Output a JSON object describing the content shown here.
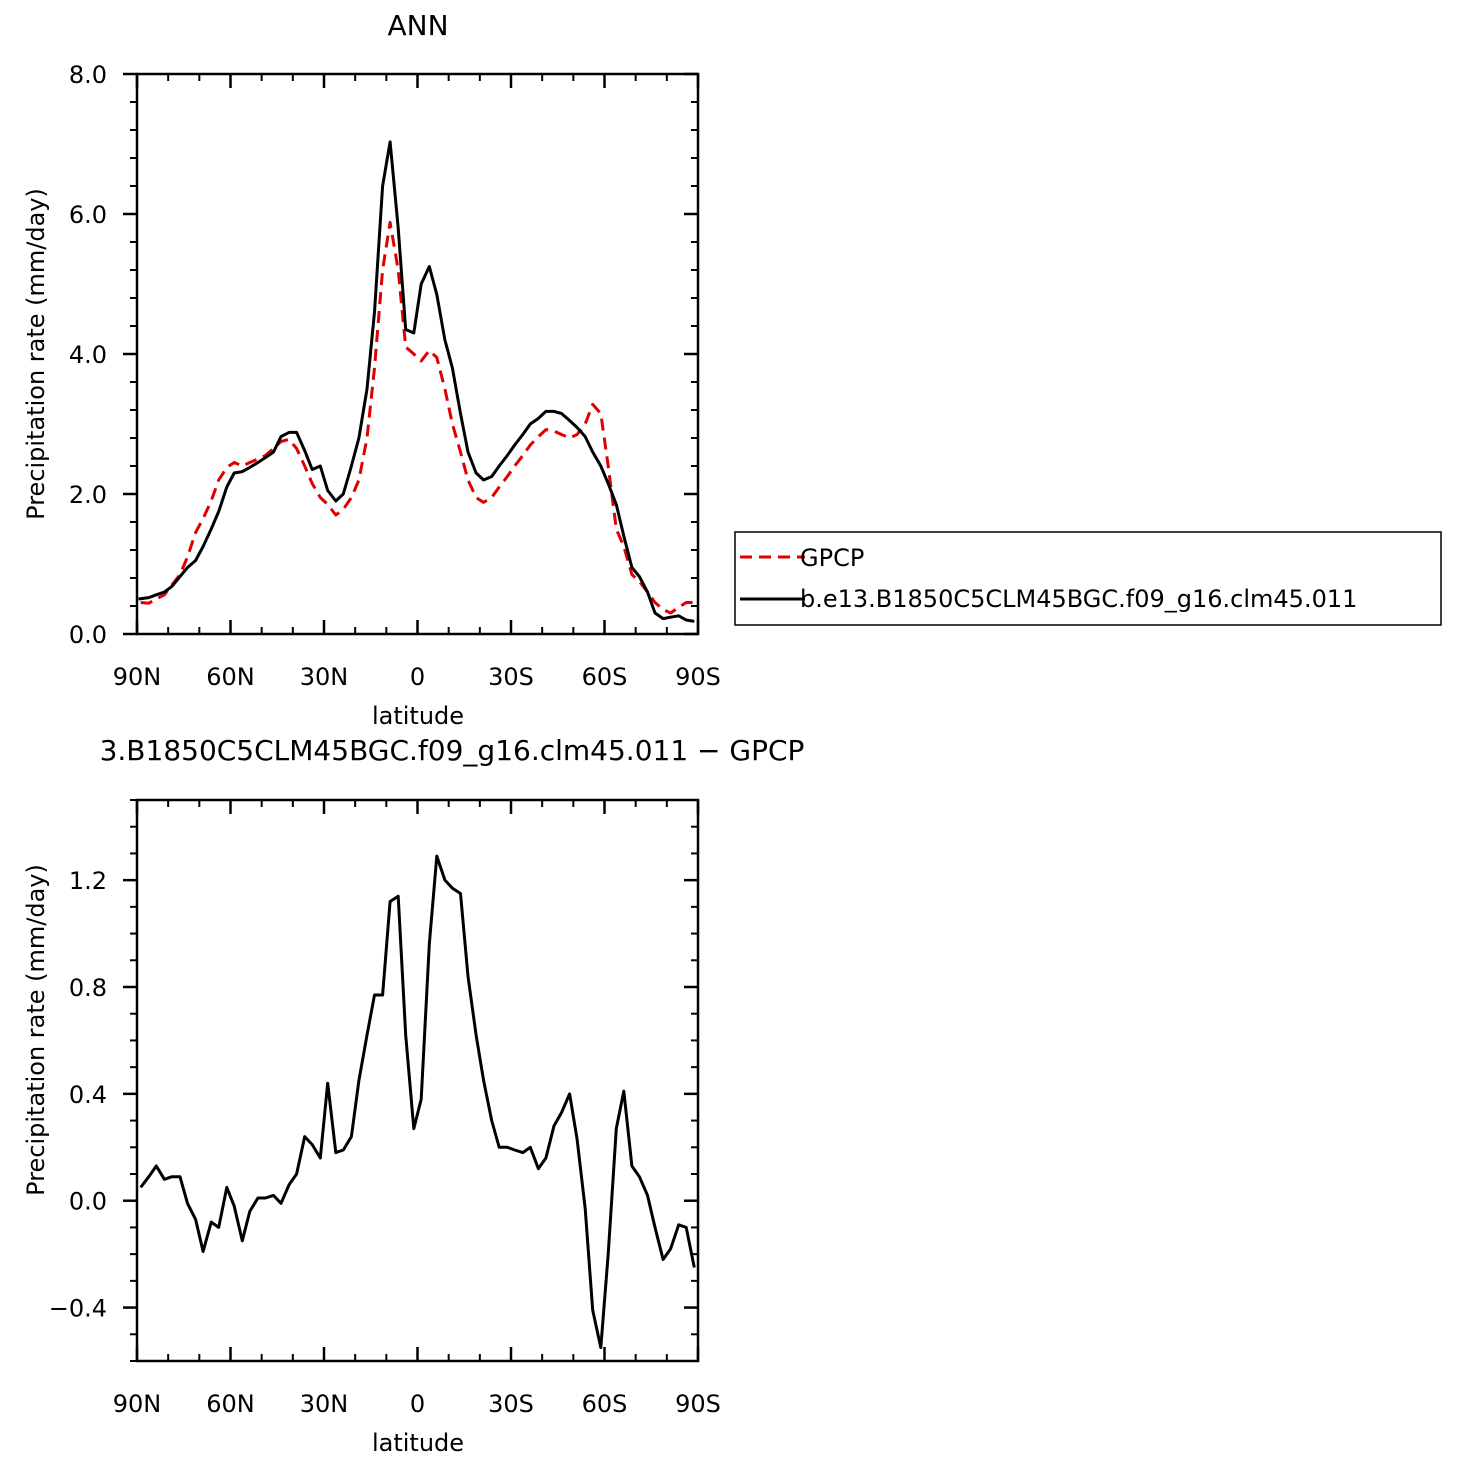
{
  "chart_data": [
    {
      "type": "line",
      "title": "ANN",
      "xlabel": "latitude",
      "ylabel": "Precipitation rate (mm/day)",
      "xlim": [
        90,
        -90
      ],
      "ylim": [
        0,
        8
      ],
      "x_ticks": [
        90,
        60,
        30,
        0,
        -30,
        -60,
        -90
      ],
      "x_tick_labels": [
        "90N",
        "60N",
        "30N",
        "0",
        "30S",
        "60S",
        "90S"
      ],
      "y_ticks": [
        0,
        2,
        4,
        6,
        8
      ],
      "y_tick_labels": [
        "0.0",
        "2.0",
        "4.0",
        "6.0",
        "8.0"
      ],
      "legend": {
        "position": "right",
        "entries": [
          {
            "label": "GPCP",
            "style": "dashed",
            "color": "#e00000"
          },
          {
            "label": "b.e13.B1850C5CLM45BGC.f09_g16.clm45.011",
            "style": "solid",
            "color": "#000000"
          }
        ]
      },
      "series": [
        {
          "name": "GPCP",
          "color": "#e00000",
          "style": "dashed",
          "x": [
            88.8,
            86.2,
            83.8,
            81.2,
            78.8,
            76.2,
            73.8,
            71.2,
            68.8,
            66.2,
            63.8,
            61.2,
            58.8,
            56.2,
            53.8,
            51.2,
            48.8,
            46.2,
            43.8,
            41.2,
            38.8,
            36.2,
            33.8,
            31.2,
            28.8,
            26.2,
            23.8,
            21.2,
            18.8,
            16.2,
            13.8,
            11.2,
            8.8,
            6.2,
            3.8,
            1.2,
            -1.2,
            -3.8,
            -6.2,
            -8.8,
            -11.2,
            -13.8,
            -16.2,
            -18.8,
            -21.2,
            -23.8,
            -26.2,
            -28.8,
            -31.2,
            -33.8,
            -36.2,
            -38.8,
            -41.2,
            -43.8,
            -46.2,
            -48.8,
            -51.2,
            -53.8,
            -56.2,
            -58.8,
            -61.2,
            -63.8,
            -66.2,
            -68.8,
            -71.2,
            -73.8,
            -76.2,
            -78.8,
            -81.2,
            -83.8,
            -86.2,
            -88.8
          ],
          "values": [
            0.45,
            0.44,
            0.5,
            0.56,
            0.7,
            0.85,
            1.1,
            1.45,
            1.65,
            1.9,
            2.2,
            2.38,
            2.45,
            2.4,
            2.45,
            2.5,
            2.55,
            2.65,
            2.75,
            2.78,
            2.65,
            2.4,
            2.15,
            1.95,
            1.85,
            1.7,
            1.78,
            1.95,
            2.2,
            2.8,
            3.8,
            5.2,
            5.88,
            5.2,
            4.1,
            4.0,
            3.9,
            4.05,
            3.95,
            3.5,
            3.0,
            2.6,
            2.2,
            1.95,
            1.88,
            1.95,
            2.1,
            2.25,
            2.4,
            2.55,
            2.7,
            2.82,
            2.92,
            2.9,
            2.85,
            2.8,
            2.85,
            3.0,
            3.28,
            3.15,
            2.4,
            1.5,
            1.25,
            0.85,
            0.75,
            0.6,
            0.45,
            0.35,
            0.3,
            0.38,
            0.45,
            0.45
          ]
        },
        {
          "name": "b.e13.B1850C5CLM45BGC.f09_g16.clm45.011",
          "color": "#000000",
          "style": "solid",
          "x": [
            89.5,
            86.2,
            83.8,
            81.2,
            78.8,
            76.2,
            73.8,
            71.2,
            68.8,
            66.2,
            63.8,
            61.2,
            58.8,
            56.2,
            53.8,
            51.2,
            48.8,
            46.2,
            43.8,
            41.2,
            38.8,
            36.2,
            33.8,
            31.2,
            28.8,
            26.2,
            23.8,
            21.2,
            18.8,
            16.2,
            13.8,
            11.2,
            8.8,
            6.2,
            3.8,
            1.2,
            -1.2,
            -3.8,
            -6.2,
            -8.8,
            -11.2,
            -13.8,
            -16.2,
            -18.8,
            -21.2,
            -23.8,
            -26.2,
            -28.8,
            -31.2,
            -33.8,
            -36.2,
            -38.8,
            -41.2,
            -43.8,
            -46.2,
            -48.8,
            -51.2,
            -53.8,
            -56.2,
            -58.8,
            -61.2,
            -63.8,
            -66.2,
            -68.8,
            -71.2,
            -73.8,
            -76.2,
            -78.8,
            -81.2,
            -83.8,
            -86.2,
            -88.8
          ],
          "values": [
            0.5,
            0.52,
            0.56,
            0.6,
            0.68,
            0.82,
            0.95,
            1.05,
            1.25,
            1.5,
            1.75,
            2.1,
            2.3,
            2.32,
            2.38,
            2.45,
            2.52,
            2.6,
            2.82,
            2.88,
            2.88,
            2.62,
            2.35,
            2.4,
            2.05,
            1.9,
            2.0,
            2.4,
            2.8,
            3.5,
            4.6,
            6.4,
            7.03,
            5.8,
            4.35,
            4.3,
            5.0,
            5.25,
            4.85,
            4.2,
            3.8,
            3.15,
            2.6,
            2.3,
            2.2,
            2.25,
            2.4,
            2.55,
            2.7,
            2.85,
            3.0,
            3.08,
            3.18,
            3.18,
            3.15,
            3.05,
            2.95,
            2.82,
            2.6,
            2.4,
            2.15,
            1.85,
            1.4,
            0.95,
            0.82,
            0.6,
            0.3,
            0.22,
            0.24,
            0.26,
            0.2,
            0.18
          ]
        }
      ]
    },
    {
      "type": "line",
      "title": "3.B1850C5CLM45BGC.f09_g16.clm45.011 − GPCP",
      "xlabel": "latitude",
      "ylabel": "Precipitation rate (mm/day)",
      "xlim": [
        90,
        -90
      ],
      "ylim": [
        -0.6,
        1.5
      ],
      "x_ticks": [
        90,
        60,
        30,
        0,
        -30,
        -60,
        -90
      ],
      "x_tick_labels": [
        "90N",
        "60N",
        "30N",
        "0",
        "30S",
        "60S",
        "90S"
      ],
      "y_ticks": [
        -0.4,
        0.0,
        0.4,
        0.8,
        1.2
      ],
      "y_tick_labels": [
        "−0.4",
        "0.0",
        "0.4",
        "0.8",
        "1.2"
      ],
      "series": [
        {
          "color": "#000000",
          "style": "solid",
          "x": [
            88.8,
            86.2,
            83.8,
            81.2,
            78.8,
            76.2,
            73.8,
            71.2,
            68.8,
            66.2,
            63.8,
            61.2,
            58.8,
            56.2,
            53.8,
            51.2,
            48.8,
            46.2,
            43.8,
            41.2,
            38.8,
            36.2,
            33.8,
            31.2,
            28.8,
            26.2,
            23.8,
            21.2,
            18.8,
            16.2,
            13.8,
            11.2,
            8.8,
            6.2,
            3.8,
            1.2,
            -1.2,
            -3.8,
            -6.2,
            -8.8,
            -11.2,
            -13.8,
            -16.2,
            -18.8,
            -21.2,
            -23.8,
            -26.2,
            -28.8,
            -31.2,
            -33.8,
            -36.2,
            -38.8,
            -41.2,
            -43.8,
            -46.2,
            -48.8,
            -51.2,
            -53.8,
            -56.2,
            -58.8,
            -61.2,
            -63.8,
            -66.2,
            -68.8,
            -71.2,
            -73.8,
            -76.2,
            -78.8,
            -81.2,
            -83.8,
            -86.2,
            -88.8
          ],
          "values": [
            0.05,
            0.09,
            0.13,
            0.08,
            0.09,
            0.09,
            -0.01,
            -0.07,
            -0.19,
            -0.08,
            -0.1,
            0.05,
            -0.02,
            -0.15,
            -0.04,
            0.01,
            0.01,
            0.02,
            -0.01,
            0.06,
            0.1,
            0.24,
            0.21,
            0.16,
            0.44,
            0.18,
            0.19,
            0.24,
            0.45,
            0.62,
            0.77,
            0.77,
            1.12,
            1.14,
            0.62,
            0.27,
            0.38,
            0.96,
            1.29,
            1.2,
            1.17,
            1.15,
            0.84,
            0.62,
            0.45,
            0.3,
            0.2,
            0.2,
            0.19,
            0.18,
            0.2,
            0.12,
            0.16,
            0.28,
            0.33,
            0.4,
            0.23,
            -0.03,
            -0.41,
            -0.55,
            -0.2,
            0.27,
            0.41,
            0.13,
            0.09,
            0.02,
            -0.1,
            -0.22,
            -0.18,
            -0.09,
            -0.1,
            -0.25
          ]
        }
      ]
    }
  ]
}
